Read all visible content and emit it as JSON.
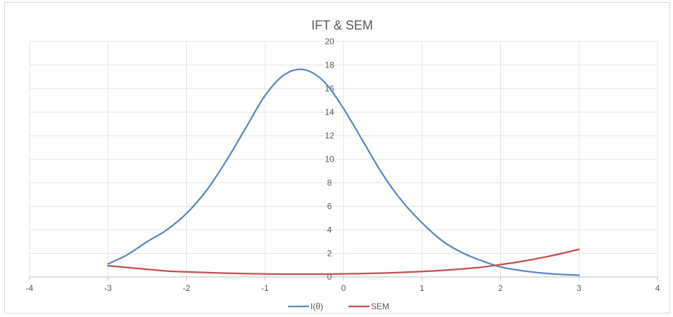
{
  "chart_data": {
    "type": "line",
    "title": "IFT & SEM",
    "xlim": [
      -4,
      4
    ],
    "ylim": [
      0,
      20
    ],
    "x_ticks": [
      -4,
      -3,
      -2,
      -1,
      0,
      1,
      2,
      3,
      4
    ],
    "y_ticks": [
      0,
      2,
      4,
      6,
      8,
      10,
      12,
      14,
      16,
      18,
      20
    ],
    "grid": true,
    "legend_position": "bottom",
    "x": [
      -3.0,
      -2.75,
      -2.5,
      -2.25,
      -2.0,
      -1.75,
      -1.5,
      -1.25,
      -1.0,
      -0.75,
      -0.5,
      -0.25,
      0.0,
      0.25,
      0.5,
      0.75,
      1.0,
      1.25,
      1.5,
      1.75,
      2.0,
      2.25,
      2.5,
      2.75,
      3.0
    ],
    "series": [
      {
        "name": "I(θ)",
        "color": "#5b87c0",
        "values": [
          1.1,
          1.9,
          3.0,
          4.0,
          5.4,
          7.3,
          9.8,
          12.6,
          15.4,
          17.2,
          17.6,
          16.6,
          14.3,
          11.5,
          8.7,
          6.4,
          4.6,
          3.1,
          2.1,
          1.4,
          0.85,
          0.55,
          0.35,
          0.22,
          0.15
        ]
      },
      {
        "name": "SEM",
        "color": "#c0504d",
        "values": [
          0.95,
          0.8,
          0.65,
          0.5,
          0.43,
          0.37,
          0.32,
          0.28,
          0.25,
          0.24,
          0.24,
          0.24,
          0.26,
          0.29,
          0.33,
          0.39,
          0.46,
          0.55,
          0.67,
          0.82,
          1.05,
          1.3,
          1.6,
          1.95,
          2.35
        ]
      }
    ]
  }
}
